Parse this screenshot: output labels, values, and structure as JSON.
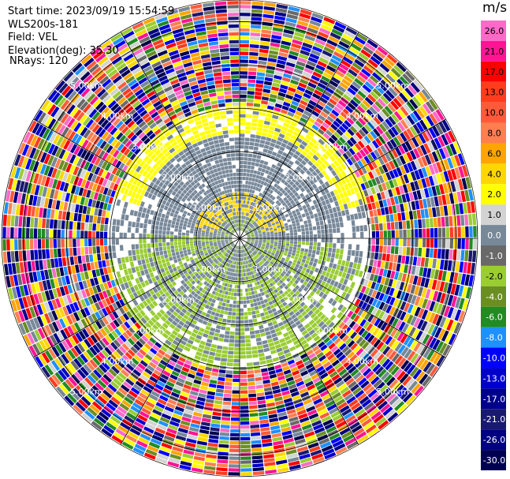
{
  "header": {
    "start_time": "Start time: 2023/09/19 15:54:59",
    "instrument": "WLS200s-181",
    "field": "Field: VEL",
    "elevation": "Elevation(deg): 35.30",
    "nrays": "NRays: 120"
  },
  "colorbar": {
    "unit": "m/s",
    "levels": [
      {
        "label": "26.0",
        "color": "#ff69c8"
      },
      {
        "label": "21.0",
        "color": "#ff1493"
      },
      {
        "label": "17.0",
        "color": "#ff0000"
      },
      {
        "label": "13.0",
        "color": "#ff3c1e"
      },
      {
        "label": "10.0",
        "color": "#ff5a3c"
      },
      {
        "label": "8.0",
        "color": "#ff7f50"
      },
      {
        "label": "6.0",
        "color": "#ffa500"
      },
      {
        "label": "4.0",
        "color": "#ffd700"
      },
      {
        "label": "2.0",
        "color": "#ffff00"
      },
      {
        "label": "1.0",
        "color": "#d3d3d3"
      },
      {
        "label": "0.0",
        "color": "#778899"
      },
      {
        "label": "-1.0",
        "color": "#696969"
      },
      {
        "label": "-2.0",
        "color": "#9acd32"
      },
      {
        "label": "-4.0",
        "color": "#6b8e23"
      },
      {
        "label": "-6.0",
        "color": "#228b22"
      },
      {
        "label": "-8.0",
        "color": "#1e90ff"
      },
      {
        "label": "-10.0",
        "color": "#0000ff"
      },
      {
        "label": "-13.0",
        "color": "#0000cd"
      },
      {
        "label": "-17.0",
        "color": "#00008b"
      },
      {
        "label": "-21.0",
        "color": "#191970"
      },
      {
        "label": "-26.0",
        "color": "#000080"
      },
      {
        "label": "-30.0",
        "color": "#000050"
      }
    ]
  },
  "chart_data": {
    "type": "heatmap",
    "title": "",
    "field": "VEL",
    "units": "m/s",
    "nrays": 120,
    "elevation_deg": 35.3,
    "range_rings_km": [
      1,
      2,
      3,
      4,
      5
    ],
    "range_ring_labels": [
      "1.00km",
      "2.00km",
      "3.00km",
      "4.00km",
      "5.00km"
    ],
    "max_range_km": 5.5,
    "vmin": -30.0,
    "vmax": 30.0,
    "velocity_structure": [
      {
        "range_km": [
          0.0,
          1.5
        ],
        "description": "mixed near-zero (grey) and yellow / green",
        "dominant": "0.0"
      },
      {
        "range_km": [
          1.5,
          3.0
        ],
        "description": "grey core, yellow ring to north, green to south",
        "dominant": "0.0"
      },
      {
        "range_km": [
          3.0,
          5.5
        ],
        "description": "noisy, all colours",
        "dominant": "noise"
      }
    ]
  }
}
